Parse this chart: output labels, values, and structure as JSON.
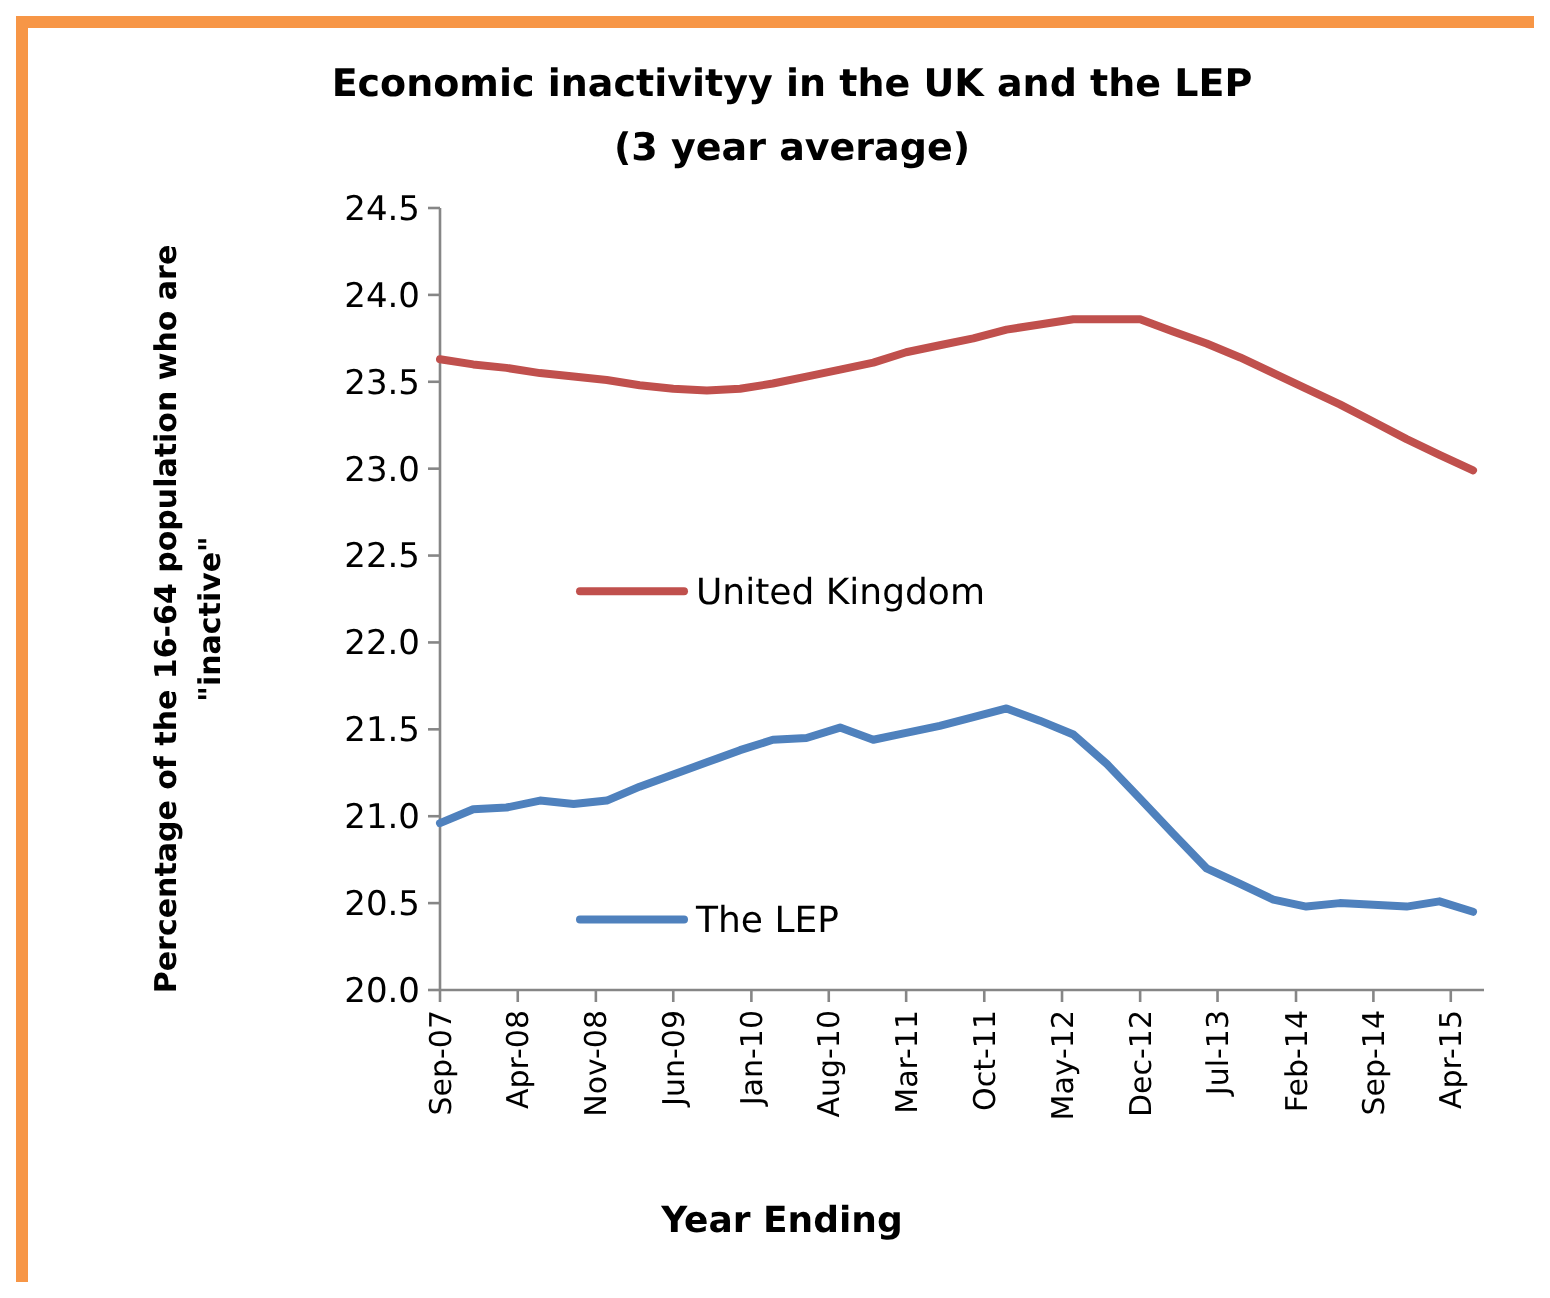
{
  "chart_data": {
    "type": "line",
    "title": "Economic inactivityy in the UK and the LEP\n(3 year average)",
    "xlabel": "Year Ending",
    "ylabel": "Percentage of the 16-64 population who are\n\"inactive\"",
    "x": [
      "2007-09",
      "2007-12",
      "2008-03",
      "2008-06",
      "2008-09",
      "2008-12",
      "2009-03",
      "2009-06",
      "2009-09",
      "2009-12",
      "2010-03",
      "2010-06",
      "2010-09",
      "2010-12",
      "2011-03",
      "2011-06",
      "2011-09",
      "2011-12",
      "2012-03",
      "2012-06",
      "2012-09",
      "2012-12",
      "2013-03",
      "2013-06",
      "2013-09",
      "2013-12",
      "2014-03",
      "2014-06",
      "2014-09",
      "2014-12",
      "2015-03",
      "2015-06"
    ],
    "series": [
      {
        "name": "United Kingdom",
        "color": "#c0504d",
        "values": [
          23.63,
          23.6,
          23.58,
          23.55,
          23.53,
          23.51,
          23.48,
          23.46,
          23.45,
          23.46,
          23.49,
          23.53,
          23.57,
          23.61,
          23.67,
          23.71,
          23.75,
          23.8,
          23.83,
          23.86,
          23.86,
          23.86,
          23.79,
          23.72,
          23.64,
          23.55,
          23.46,
          23.37,
          23.27,
          23.17,
          23.08,
          22.99
        ]
      },
      {
        "name": "The LEP",
        "color": "#4f81bd",
        "values": [
          20.96,
          21.04,
          21.05,
          21.09,
          21.07,
          21.09,
          21.17,
          21.24,
          21.31,
          21.38,
          21.44,
          21.45,
          21.51,
          21.44,
          21.48,
          21.52,
          21.57,
          21.62,
          21.55,
          21.47,
          21.3,
          21.1,
          20.9,
          20.7,
          20.61,
          20.52,
          20.48,
          20.5,
          20.49,
          20.48,
          20.51,
          20.45
        ]
      }
    ],
    "xlim": [
      "2007-09",
      "2015-07"
    ],
    "xticks": [
      {
        "value": "2007-09",
        "label": "Sep-07"
      },
      {
        "value": "2008-04",
        "label": "Apr-08"
      },
      {
        "value": "2008-11",
        "label": "Nov-08"
      },
      {
        "value": "2009-06",
        "label": "Jun-09"
      },
      {
        "value": "2010-01",
        "label": "Jan-10"
      },
      {
        "value": "2010-08",
        "label": "Aug-10"
      },
      {
        "value": "2011-03",
        "label": "Mar-11"
      },
      {
        "value": "2011-10",
        "label": "Oct-11"
      },
      {
        "value": "2012-05",
        "label": "May-12"
      },
      {
        "value": "2012-12",
        "label": "Dec-12"
      },
      {
        "value": "2013-07",
        "label": "Jul-13"
      },
      {
        "value": "2014-02",
        "label": "Feb-14"
      },
      {
        "value": "2014-09",
        "label": "Sep-14"
      },
      {
        "value": "2015-04",
        "label": "Apr-15"
      }
    ],
    "ylim": [
      20,
      24.5
    ],
    "yticks": [
      {
        "value": 20,
        "label": "20.0"
      },
      {
        "value": 20.5,
        "label": "20.5"
      },
      {
        "value": 21,
        "label": "21.0"
      },
      {
        "value": 21.5,
        "label": "21.5"
      },
      {
        "value": 22,
        "label": "22.0"
      },
      {
        "value": 22.5,
        "label": "22.5"
      },
      {
        "value": 23,
        "label": "23.0"
      },
      {
        "value": 23.5,
        "label": "23.5"
      },
      {
        "value": 24,
        "label": "24.0"
      },
      {
        "value": 24.5,
        "label": "24.5"
      }
    ],
    "grid": false,
    "legend": "center",
    "marker": "none",
    "line_style": "solid"
  }
}
